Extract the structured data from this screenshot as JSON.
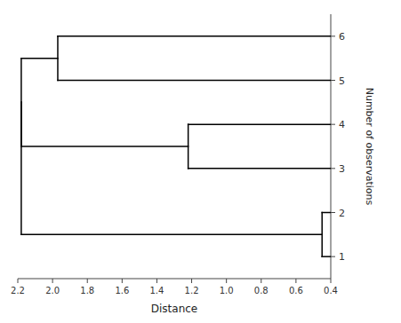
{
  "chart_data": {
    "type": "dendrogram",
    "xlabel": "Distance",
    "ylabel": "Number of observations",
    "xlim": [
      2.2,
      0.4
    ],
    "ylim": [
      0.5,
      6.5
    ],
    "xticks": [
      2.2,
      {
        "value": 2.0,
        "label": "2.0"
      },
      1.8,
      1.6,
      1.4,
      1.2,
      {
        "value": 1.0,
        "label": "1.0"
      },
      0.8,
      0.6,
      0.4
    ],
    "yticks": [
      1,
      2,
      3,
      4,
      5,
      6
    ],
    "color": "#000000",
    "merges": [
      {
        "left": [
          1
        ],
        "right": [
          2
        ],
        "distance": 0.45
      },
      {
        "left": [
          3
        ],
        "right": [
          4
        ],
        "distance": 1.22
      },
      {
        "left": [
          5
        ],
        "right": [
          6
        ],
        "distance": 1.97
      },
      {
        "left": [
          3,
          4
        ],
        "right": [
          5,
          6
        ],
        "distance": 2.18
      },
      {
        "left": [
          1,
          2
        ],
        "right": [
          3,
          4,
          5,
          6
        ],
        "distance": 2.18
      }
    ]
  }
}
